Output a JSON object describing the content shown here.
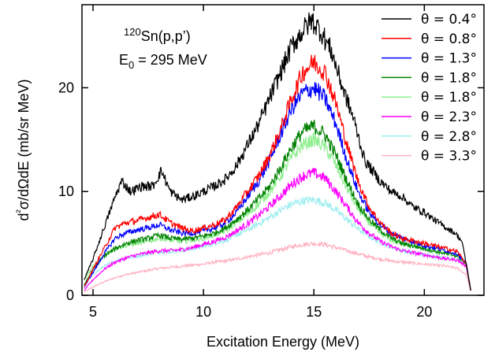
{
  "chart_data": {
    "type": "line",
    "xlabel": "Excitation Energy (MeV)",
    "ylabel": "d²σ/dΩdE (mb/sr MeV)",
    "xlim": [
      4.5,
      22.7
    ],
    "ylim": [
      0,
      28
    ],
    "xticks": [
      5,
      10,
      15,
      20
    ],
    "yticks": [
      0,
      10,
      20
    ],
    "grid": false,
    "legend_position": "top-right",
    "annotation": {
      "target_mass": "120",
      "target_rest": "Sn(p,p’)",
      "energy_E": "E",
      "energy_sub": "0",
      "energy_rest": " = 295 MeV"
    },
    "series": [
      {
        "name": "θ = 0.4°",
        "color": "#000000",
        "x": [
          4.6,
          5.0,
          5.5,
          6.0,
          6.3,
          6.7,
          7.2,
          7.7,
          8.1,
          8.5,
          9.0,
          9.5,
          10.0,
          10.5,
          11.0,
          11.5,
          12.0,
          12.5,
          13.0,
          13.5,
          14.0,
          14.5,
          14.9,
          15.3,
          15.8,
          16.3,
          16.8,
          17.3,
          18.0,
          18.5,
          19.0,
          19.5,
          20.0,
          20.5,
          21.0,
          21.4,
          21.7,
          21.9,
          22.1
        ],
        "y": [
          1.5,
          3.5,
          6.5,
          9.5,
          11.0,
          10.0,
          10.5,
          10.5,
          12.0,
          10.0,
          9.2,
          9.5,
          10.0,
          10.5,
          11.2,
          12.5,
          14.5,
          16.5,
          19.0,
          21.5,
          24.0,
          25.5,
          26.5,
          25.5,
          23.5,
          20.0,
          17.0,
          13.0,
          11.0,
          10.0,
          9.5,
          8.5,
          8.0,
          7.2,
          6.5,
          6.0,
          5.2,
          3.0,
          0.5
        ]
      },
      {
        "name": "θ = 0.8°",
        "color": "#ff0000",
        "x": [
          4.6,
          5.0,
          5.5,
          6.0,
          6.5,
          7.0,
          7.5,
          8.0,
          8.5,
          9.0,
          9.5,
          10.0,
          10.5,
          11.0,
          11.5,
          12.0,
          12.5,
          13.0,
          13.5,
          14.0,
          14.5,
          15.0,
          15.5,
          16.0,
          16.5,
          17.0,
          17.5,
          18.0,
          18.5,
          19.0,
          20.0,
          21.0,
          21.5,
          21.9,
          22.1
        ],
        "y": [
          0.8,
          2.5,
          4.5,
          6.5,
          7.0,
          7.2,
          7.5,
          7.8,
          7.0,
          6.5,
          6.2,
          6.5,
          6.8,
          7.3,
          8.5,
          10.0,
          11.5,
          13.5,
          16.0,
          19.0,
          21.5,
          22.5,
          21.5,
          18.5,
          14.5,
          11.0,
          8.5,
          7.0,
          6.0,
          5.5,
          5.0,
          4.5,
          4.2,
          3.0,
          0.5
        ]
      },
      {
        "name": "θ = 1.3°",
        "color": "#0000ff",
        "x": [
          4.6,
          5.0,
          5.5,
          6.0,
          6.5,
          7.0,
          7.5,
          8.0,
          8.5,
          9.0,
          9.5,
          10.0,
          10.5,
          11.0,
          11.5,
          12.0,
          12.5,
          13.0,
          13.5,
          14.0,
          14.5,
          15.0,
          15.5,
          16.0,
          16.5,
          17.0,
          17.5,
          18.0,
          18.5,
          19.0,
          20.0,
          21.0,
          21.5,
          21.9,
          22.1
        ],
        "y": [
          0.8,
          2.2,
          4.0,
          5.5,
          6.0,
          6.3,
          6.5,
          6.8,
          6.3,
          6.0,
          6.0,
          6.2,
          6.5,
          7.0,
          8.0,
          9.5,
          11.0,
          13.0,
          15.5,
          18.0,
          19.5,
          20.0,
          19.0,
          16.5,
          13.0,
          10.0,
          8.0,
          6.8,
          6.0,
          5.5,
          4.8,
          4.3,
          4.0,
          3.0,
          0.5
        ]
      },
      {
        "name": "θ = 1.8°",
        "color": "#008000",
        "x": [
          4.6,
          5.0,
          5.5,
          6.0,
          6.5,
          7.0,
          7.5,
          8.0,
          8.5,
          9.0,
          9.5,
          10.0,
          10.5,
          11.0,
          11.5,
          12.0,
          12.5,
          13.0,
          13.5,
          14.0,
          14.5,
          15.0,
          15.5,
          16.0,
          16.5,
          17.0,
          17.5,
          18.0,
          18.5,
          19.0,
          20.0,
          21.0,
          21.5,
          21.9,
          22.1
        ],
        "y": [
          1.0,
          2.5,
          3.8,
          4.5,
          5.0,
          5.3,
          5.5,
          5.8,
          5.5,
          5.4,
          5.5,
          5.7,
          6.0,
          6.5,
          7.3,
          8.2,
          9.3,
          10.5,
          12.3,
          14.3,
          15.8,
          16.3,
          15.5,
          13.5,
          11.0,
          8.8,
          7.3,
          6.3,
          5.5,
          5.0,
          4.5,
          4.0,
          3.8,
          3.0,
          0.5
        ]
      },
      {
        "name": "θ = 1.8°",
        "color": "#90ee90",
        "x": [
          4.6,
          5.0,
          5.5,
          6.0,
          6.5,
          7.0,
          7.5,
          8.0,
          8.5,
          9.0,
          9.5,
          10.0,
          10.5,
          11.0,
          11.5,
          12.0,
          12.5,
          13.0,
          13.5,
          14.0,
          14.5,
          15.0,
          15.5,
          16.0,
          16.5,
          17.0,
          17.5,
          18.0,
          18.5,
          19.0,
          20.0,
          21.0,
          21.5,
          21.9,
          22.1
        ],
        "y": [
          1.5,
          2.8,
          3.8,
          4.5,
          4.8,
          5.0,
          5.2,
          5.5,
          5.3,
          5.2,
          5.3,
          5.5,
          5.8,
          6.2,
          7.0,
          7.8,
          8.8,
          10.0,
          11.5,
          13.3,
          14.5,
          15.0,
          14.3,
          12.5,
          10.3,
          8.3,
          7.0,
          6.0,
          5.3,
          5.0,
          4.5,
          4.0,
          3.8,
          3.0,
          0.5
        ]
      },
      {
        "name": "θ = 2.3°",
        "color": "#ff00ff",
        "x": [
          4.6,
          5.0,
          5.5,
          6.0,
          6.5,
          7.0,
          7.5,
          8.0,
          8.5,
          9.0,
          9.5,
          10.0,
          10.5,
          11.0,
          11.5,
          12.0,
          12.5,
          13.0,
          13.5,
          14.0,
          14.5,
          15.0,
          15.5,
          16.0,
          16.5,
          17.0,
          17.5,
          18.0,
          18.5,
          19.0,
          20.0,
          21.0,
          21.5,
          21.9,
          22.1
        ],
        "y": [
          0.5,
          1.5,
          2.5,
          3.2,
          3.6,
          3.9,
          4.1,
          4.3,
          4.3,
          4.4,
          4.6,
          4.9,
          5.2,
          5.6,
          6.2,
          6.9,
          7.7,
          8.6,
          9.6,
          10.7,
          11.5,
          11.8,
          11.3,
          10.0,
          8.5,
          7.0,
          6.0,
          5.2,
          4.7,
          4.3,
          3.9,
          3.5,
          3.4,
          2.8,
          0.5
        ]
      },
      {
        "name": "θ = 2.8°",
        "color": "#a0eef0",
        "x": [
          4.6,
          5.0,
          5.5,
          6.0,
          6.5,
          7.0,
          7.5,
          8.0,
          8.5,
          9.0,
          9.5,
          10.0,
          10.5,
          11.0,
          11.5,
          12.0,
          12.5,
          13.0,
          13.5,
          14.0,
          14.5,
          15.0,
          15.5,
          16.0,
          16.5,
          17.0,
          17.5,
          18.0,
          18.5,
          19.0,
          20.0,
          21.0,
          21.5,
          21.9,
          22.1
        ],
        "y": [
          1.0,
          2.0,
          2.8,
          3.3,
          3.6,
          3.8,
          4.0,
          4.2,
          4.2,
          4.3,
          4.5,
          4.7,
          5.0,
          5.3,
          5.8,
          6.3,
          6.9,
          7.5,
          8.2,
          8.8,
          9.1,
          9.2,
          8.9,
          8.2,
          7.3,
          6.4,
          5.7,
          5.1,
          4.7,
          4.3,
          3.9,
          3.6,
          3.5,
          3.0,
          0.5
        ]
      },
      {
        "name": "θ = 3.3°",
        "color": "#ffb0c0",
        "x": [
          4.6,
          5.0,
          5.5,
          6.0,
          6.5,
          7.0,
          7.5,
          8.0,
          8.5,
          9.0,
          9.5,
          10.0,
          10.5,
          11.0,
          11.5,
          12.0,
          12.5,
          13.0,
          13.5,
          14.0,
          14.5,
          15.0,
          15.5,
          16.0,
          16.5,
          17.0,
          17.5,
          18.0,
          18.5,
          19.0,
          20.0,
          21.0,
          21.5,
          21.9,
          22.1
        ],
        "y": [
          0.3,
          0.8,
          1.3,
          1.7,
          2.0,
          2.2,
          2.4,
          2.6,
          2.7,
          2.8,
          2.9,
          3.0,
          3.2,
          3.3,
          3.5,
          3.7,
          3.9,
          4.1,
          4.4,
          4.7,
          4.9,
          5.0,
          4.9,
          4.6,
          4.3,
          4.0,
          3.7,
          3.5,
          3.3,
          3.2,
          3.0,
          2.8,
          2.6,
          2.0,
          0.4
        ]
      }
    ]
  }
}
